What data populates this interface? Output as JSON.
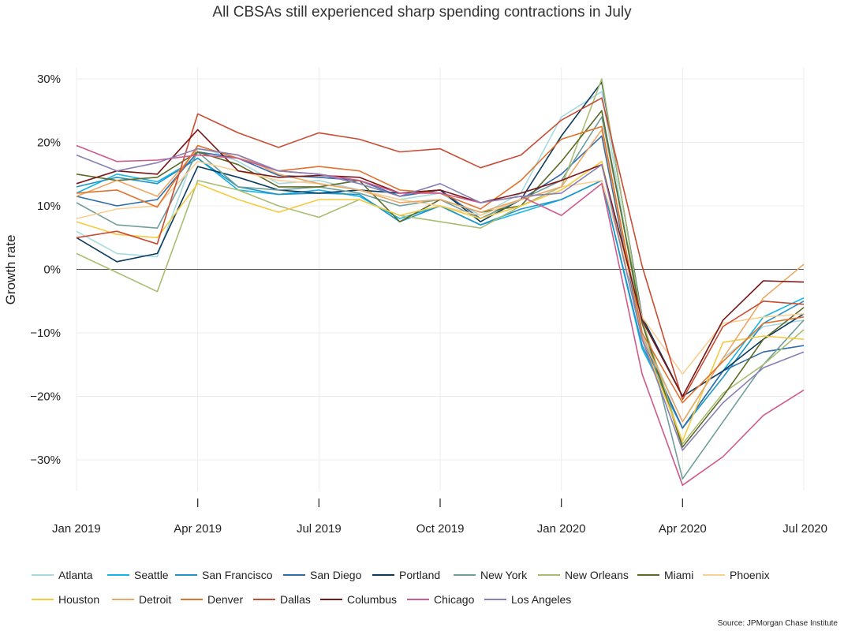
{
  "chart_data": {
    "type": "line",
    "title": "All CBSAs still experienced sharp spending contractions in July",
    "xlabel": "",
    "ylabel": "Growth rate",
    "source": "Source: JPMorgan Chase Institute",
    "x": [
      "2019-01",
      "2019-02",
      "2019-03",
      "2019-04",
      "2019-05",
      "2019-06",
      "2019-07",
      "2019-08",
      "2019-09",
      "2019-10",
      "2019-11",
      "2019-12",
      "2020-01",
      "2020-02",
      "2020-03",
      "2020-04",
      "2020-05",
      "2020-06",
      "2020-07"
    ],
    "x_tick_labels": [
      "Jan 2019",
      "Apr 2019",
      "Jul 2019",
      "Oct 2019",
      "Jan 2020",
      "Apr 2020",
      "Jul 2020"
    ],
    "x_tick_index": [
      0,
      3,
      6,
      9,
      12,
      15,
      18
    ],
    "ylim": [
      -37,
      33
    ],
    "y_ticks": [
      30,
      20,
      10,
      0,
      -10,
      -20,
      -30
    ],
    "y_tick_labels": [
      "30%",
      "20%",
      "10%",
      "0%",
      "−10%",
      "−20%",
      "−30%"
    ],
    "grid": true,
    "legend_position": "bottom",
    "series": [
      {
        "name": "Atlanta",
        "color": "#a6dbe0",
        "values": [
          6,
          2.5,
          2,
          19.5,
          17,
          13.5,
          14,
          12.5,
          11,
          12,
          8.5,
          12,
          24,
          28,
          -10,
          -24,
          -14,
          -9,
          -8
        ]
      },
      {
        "name": "Seattle",
        "color": "#17b5e6",
        "values": [
          12,
          15,
          13.8,
          17.5,
          12.5,
          11.8,
          12.5,
          11.5,
          8,
          10,
          7,
          9,
          11,
          14,
          -12.5,
          -25,
          -16,
          -7.5,
          -4.5
        ]
      },
      {
        "name": "San Francisco",
        "color": "#1f94c7",
        "values": [
          13,
          14.5,
          13.5,
          17.5,
          13,
          11.8,
          12,
          11.8,
          7.5,
          10,
          7,
          9.5,
          11,
          14,
          -12,
          -25,
          -17,
          -8.5,
          -5
        ]
      },
      {
        "name": "San Diego",
        "color": "#2f6ca8",
        "values": [
          11.5,
          10,
          11,
          18.5,
          17.5,
          14.8,
          14.5,
          14,
          11.5,
          12.5,
          8,
          11,
          15,
          21,
          -11,
          -25,
          -16,
          -13,
          -12
        ]
      },
      {
        "name": "Portland",
        "color": "#0b3a5e",
        "values": [
          5,
          1.2,
          2.5,
          16.2,
          14.5,
          12.5,
          12,
          12.5,
          12,
          12.5,
          7.5,
          11,
          21,
          29.5,
          -7.5,
          -20,
          -16,
          -11,
          -7
        ]
      },
      {
        "name": "New York",
        "color": "#6f9e9b",
        "values": [
          10.5,
          7,
          6.5,
          18.5,
          13,
          12.5,
          13,
          12,
          10,
          11,
          8,
          11,
          14,
          24,
          -7.5,
          -33,
          -24,
          -15,
          -8
        ]
      },
      {
        "name": "New Orleans",
        "color": "#a9bd72",
        "values": [
          2.5,
          -0.5,
          -3.5,
          14,
          12.5,
          10,
          8.2,
          11,
          8.5,
          7.5,
          6.5,
          10,
          13,
          30,
          -8,
          -27.5,
          -19.5,
          -15,
          -9.5
        ]
      },
      {
        "name": "Miami",
        "color": "#5c6b28",
        "values": [
          15,
          14,
          14.5,
          18.5,
          16.5,
          13,
          13,
          14,
          7.5,
          11,
          9,
          10,
          17,
          25,
          -8.5,
          -28,
          -20,
          -11,
          -6
        ]
      },
      {
        "name": "Phoenix",
        "color": "#f9cf93",
        "values": [
          8,
          9.5,
          10,
          17,
          15.5,
          14,
          13.5,
          12.5,
          11,
          10,
          8.5,
          11,
          13,
          14,
          -7.5,
          -16.5,
          -8.5,
          -7.5,
          -7
        ]
      },
      {
        "name": "Houston",
        "color": "#f4ca40",
        "values": [
          7.5,
          5.5,
          5,
          13.5,
          11,
          9,
          11,
          11,
          8.5,
          10,
          8,
          10,
          12.5,
          17,
          -11,
          -27,
          -11.5,
          -10.5,
          -11
        ]
      },
      {
        "name": "Detroit",
        "color": "#eba765",
        "values": [
          11.5,
          14,
          11.5,
          19,
          18,
          15,
          13.5,
          12.5,
          10.5,
          11,
          9,
          11,
          13,
          22,
          -10.5,
          -24,
          -14,
          -4.5,
          0.8
        ]
      },
      {
        "name": "Denver",
        "color": "#e0722e",
        "values": [
          12,
          12.5,
          9.8,
          19.5,
          17.5,
          15.5,
          16.2,
          15.5,
          12.5,
          12,
          9.5,
          14,
          20.5,
          22.5,
          -10,
          -21,
          -14.5,
          -8.5,
          -7.5
        ]
      },
      {
        "name": "Dallas",
        "color": "#c94b33",
        "values": [
          5,
          6,
          4,
          24.5,
          21.5,
          19.2,
          21.5,
          20.5,
          18.5,
          19,
          16,
          18,
          23.5,
          27,
          0.5,
          -20.5,
          -9,
          -5,
          -5.5
        ]
      },
      {
        "name": "Columbus",
        "color": "#7a1616",
        "values": [
          13.5,
          15.5,
          15,
          22,
          15.5,
          14.5,
          14.8,
          14.5,
          12,
          12.5,
          10.5,
          12,
          14,
          16.5,
          -8,
          -20,
          -8,
          -1.8,
          -2
        ]
      },
      {
        "name": "Chicago",
        "color": "#cf5a8c",
        "values": [
          19.5,
          17,
          17.2,
          18,
          17.5,
          15.5,
          15,
          14,
          12,
          12,
          10.5,
          11.5,
          8.5,
          13.5,
          -16.5,
          -34,
          -29.5,
          -23,
          -19
        ]
      },
      {
        "name": "Los Angeles",
        "color": "#8a7fb5",
        "values": [
          18,
          15.5,
          16.8,
          19,
          18,
          15.5,
          15,
          13.5,
          11.5,
          13.5,
          10.5,
          11.5,
          12,
          16.5,
          -11,
          -28.5,
          -21,
          -15.5,
          -13
        ]
      }
    ]
  }
}
